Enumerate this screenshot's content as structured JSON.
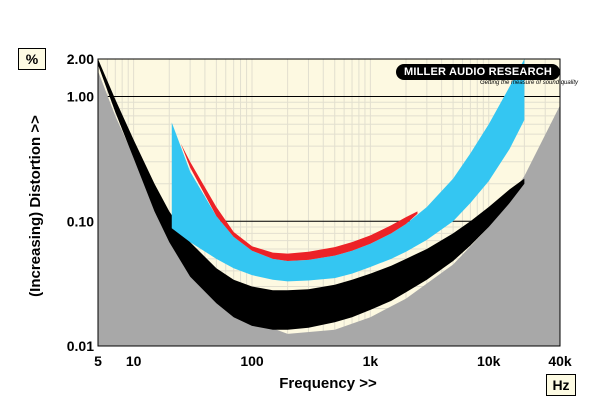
{
  "units": {
    "y": "%",
    "x": "Hz"
  },
  "logo": {
    "main": "MILLER AUDIO RESEARCH",
    "sub": "Getting the measure of sound quality"
  },
  "colors": {
    "plot_background": "#fdf9e1",
    "grid": "#e2dfcf",
    "floor_fill": "#a8a8a8",
    "series_black": "#000000",
    "series_blue": "#34c6f2",
    "series_red": "#ec2227"
  },
  "chart_data": {
    "type": "area",
    "title": "",
    "xlabel": "Frequency >>",
    "ylabel": "(Increasing) Distortion >>",
    "x_scale": "log",
    "y_scale": "log",
    "xlim": [
      5,
      40000
    ],
    "ylim": [
      0.01,
      2.0
    ],
    "x_ticks": [
      {
        "value": 5,
        "label": "5"
      },
      {
        "value": 10,
        "label": "10"
      },
      {
        "value": 100,
        "label": "100"
      },
      {
        "value": 1000,
        "label": "1k"
      },
      {
        "value": 10000,
        "label": "10k"
      },
      {
        "value": 40000,
        "label": "40k"
      }
    ],
    "y_ticks": [
      {
        "value": 0.01,
        "label": "0.01"
      },
      {
        "value": 0.1,
        "label": "0.10"
      },
      {
        "value": 1,
        "label": "1.00"
      },
      {
        "value": 2,
        "label": "2.00"
      }
    ],
    "grid": true,
    "floor": {
      "x": [
        5,
        7,
        10,
        20,
        50,
        100,
        200,
        500,
        1000,
        2000,
        5000,
        10000,
        20000,
        40000
      ],
      "y": [
        1.6,
        0.7,
        0.33,
        0.075,
        0.027,
        0.016,
        0.0125,
        0.0135,
        0.017,
        0.024,
        0.045,
        0.09,
        0.23,
        0.85
      ]
    },
    "series": [
      {
        "color": "#000000",
        "x": [
          5,
          7,
          10,
          15,
          20,
          30,
          50,
          70,
          100,
          150,
          200,
          300,
          500,
          700,
          1000,
          1500,
          2000,
          3000,
          5000,
          7000,
          10000,
          15000,
          20000
        ],
        "upper": [
          2.0,
          0.95,
          0.45,
          0.2,
          0.12,
          0.068,
          0.042,
          0.034,
          0.03,
          0.028,
          0.028,
          0.0285,
          0.031,
          0.034,
          0.038,
          0.044,
          0.05,
          0.06,
          0.08,
          0.1,
          0.13,
          0.18,
          0.22
        ],
        "lower": [
          1.8,
          0.75,
          0.32,
          0.12,
          0.068,
          0.036,
          0.022,
          0.017,
          0.0145,
          0.0135,
          0.0135,
          0.014,
          0.0155,
          0.017,
          0.0195,
          0.023,
          0.027,
          0.034,
          0.048,
          0.064,
          0.09,
          0.14,
          0.2
        ]
      },
      {
        "color": "#34c6f2",
        "x": [
          21,
          30,
          50,
          70,
          100,
          150,
          200,
          300,
          500,
          700,
          1000,
          1500,
          2000,
          3000,
          5000,
          7000,
          10000,
          15000,
          20000
        ],
        "upper": [
          0.62,
          0.25,
          0.11,
          0.075,
          0.058,
          0.05,
          0.048,
          0.049,
          0.053,
          0.058,
          0.066,
          0.08,
          0.095,
          0.13,
          0.22,
          0.35,
          0.6,
          1.2,
          2.0
        ],
        "lower": [
          0.088,
          0.068,
          0.05,
          0.042,
          0.037,
          0.034,
          0.033,
          0.0335,
          0.035,
          0.038,
          0.043,
          0.05,
          0.057,
          0.071,
          0.1,
          0.14,
          0.21,
          0.38,
          0.65
        ]
      },
      {
        "color": "#ec2227",
        "x": [
          25,
          30,
          50,
          70,
          100,
          150,
          200,
          300,
          500,
          700,
          1000,
          1500,
          2000,
          2500
        ],
        "upper": [
          0.42,
          0.3,
          0.13,
          0.082,
          0.063,
          0.056,
          0.055,
          0.057,
          0.062,
          0.068,
          0.077,
          0.093,
          0.108,
          0.12
        ],
        "lower": [
          0.42,
          0.27,
          0.11,
          0.075,
          0.058,
          0.05,
          0.048,
          0.049,
          0.053,
          0.058,
          0.066,
          0.08,
          0.095,
          0.115
        ]
      }
    ]
  }
}
